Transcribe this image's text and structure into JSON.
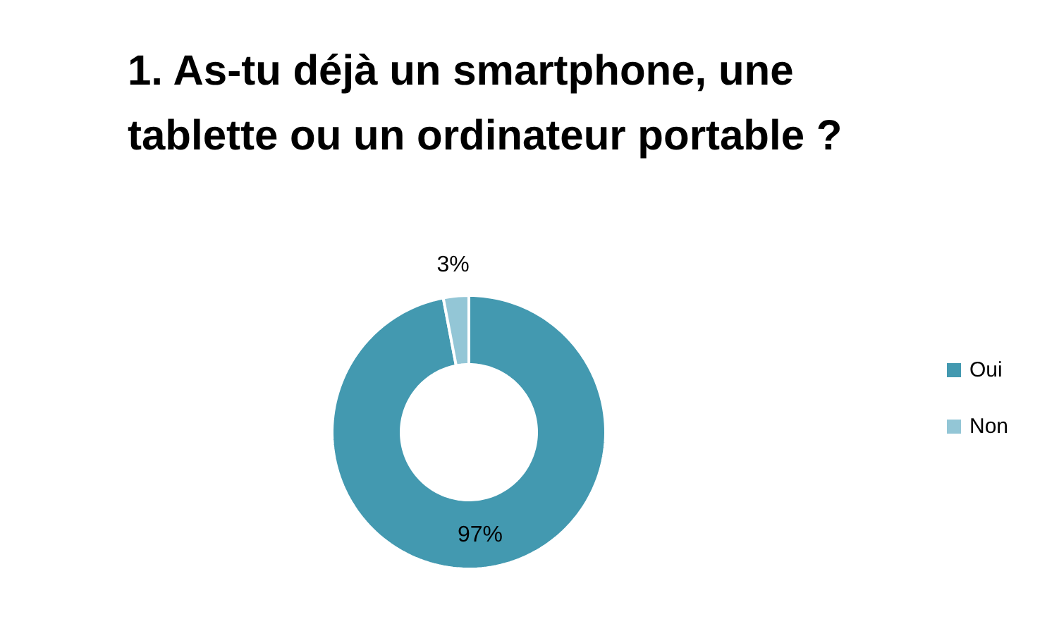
{
  "chart_data": {
    "type": "donut",
    "title": "1. As-tu déjà un smartphone, une tablette ou un ordinateur portable ?",
    "categories": [
      "Oui",
      "Non"
    ],
    "values": [
      97,
      3
    ],
    "colors": [
      "#4399b0",
      "#93c6d6"
    ],
    "value_labels": [
      "97%",
      "3%"
    ],
    "legend": "right"
  }
}
